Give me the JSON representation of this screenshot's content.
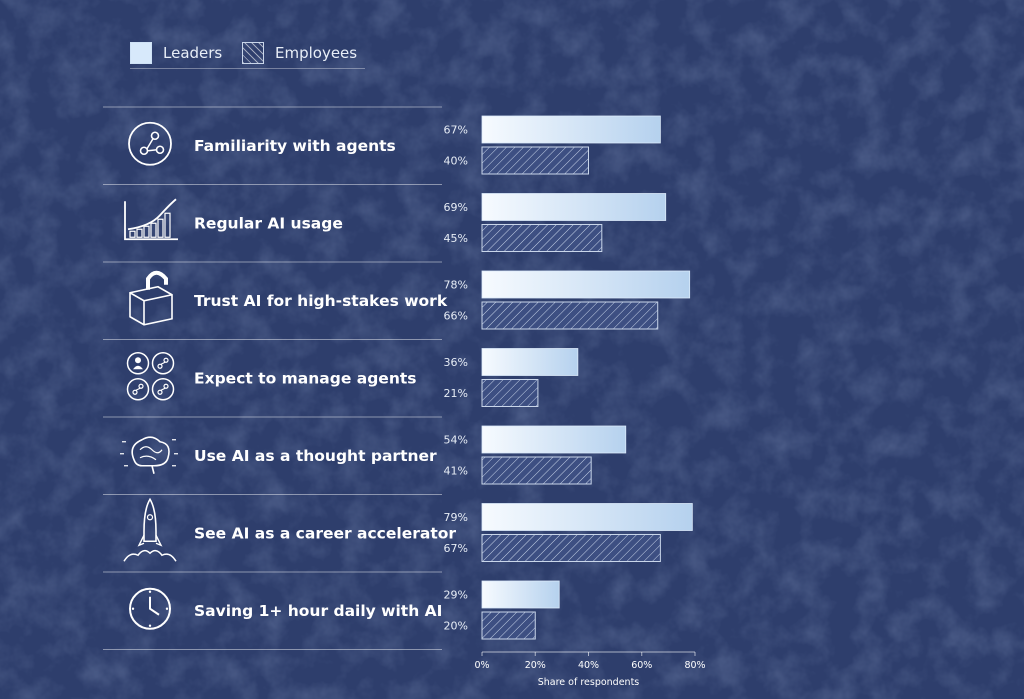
{
  "legend": {
    "leaders_label": "Leaders",
    "employees_label": "Employees"
  },
  "colors": {
    "background": "#2e3e6c",
    "leaders_bar": "#cfe2f6",
    "employees_hatch": "#c9d6ea"
  },
  "chart_data": {
    "type": "bar",
    "orientation": "horizontal",
    "categories": [
      "Familiarity with agents",
      "Regular AI usage",
      "Trust AI for high-stakes work",
      "Expect to manage agents",
      "Use AI as a thought partner",
      "See AI as a career accelerator",
      "Saving 1+ hour daily with AI"
    ],
    "icons": [
      "network-icon",
      "growth-chart-icon",
      "unlocked-box-icon",
      "people-agents-icon",
      "brain-icon",
      "rocket-icon",
      "clock-icon"
    ],
    "series": [
      {
        "name": "Leaders",
        "values": [
          67,
          69,
          78,
          36,
          54,
          79,
          29
        ],
        "labels": [
          "67%",
          "69%",
          "78%",
          "36%",
          "54%",
          "79%",
          "29%"
        ]
      },
      {
        "name": "Employees",
        "values": [
          40,
          45,
          66,
          21,
          41,
          67,
          20
        ],
        "labels": [
          "40%",
          "45%",
          "66%",
          "21%",
          "41%",
          "67%",
          "20%"
        ]
      }
    ],
    "xlim": [
      0,
      80
    ],
    "ticks": [
      "0%",
      "20%",
      "40%",
      "60%",
      "80%"
    ],
    "xlabel": "Share of respondents",
    "legend_position": "top-left"
  }
}
